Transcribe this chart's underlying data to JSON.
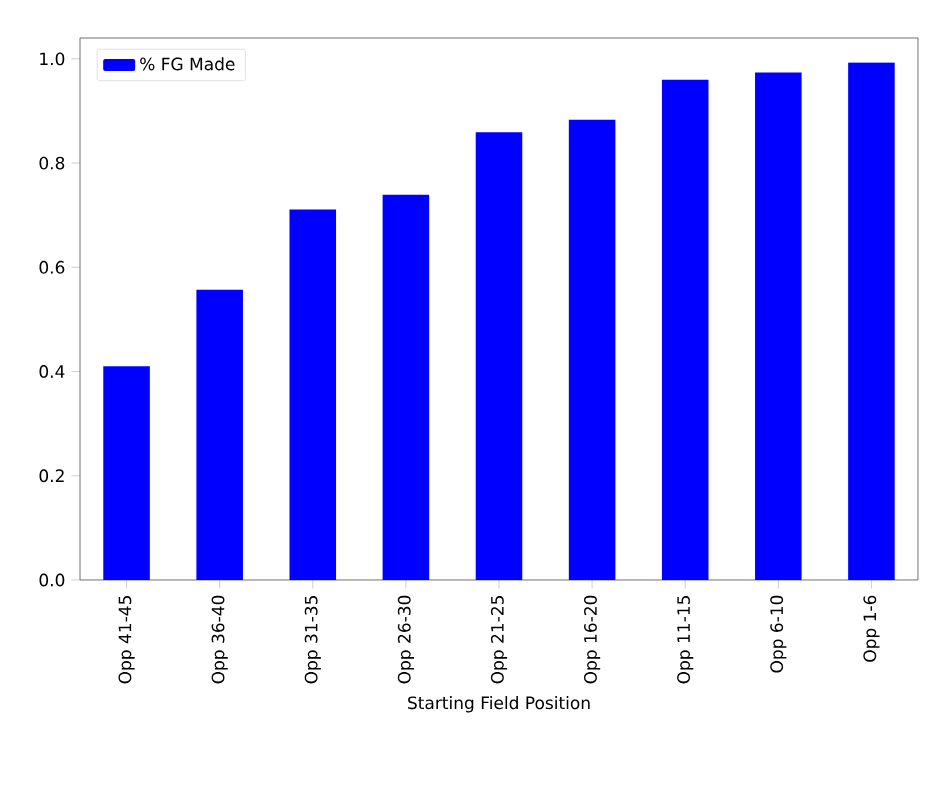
{
  "chart_data": {
    "type": "bar",
    "xlabel": "Starting Field Position",
    "categories": [
      "Opp 41-45",
      "Opp 36-40",
      "Opp 31-35",
      "Opp 26-30",
      "Opp 21-25",
      "Opp 16-20",
      "Opp 11-15",
      "Opp 6-10",
      "Opp 1-6"
    ],
    "series": [
      {
        "name": "% FG Made",
        "color": "#0000ff",
        "values": [
          0.41,
          0.557,
          0.711,
          0.739,
          0.859,
          0.883,
          0.96,
          0.974,
          0.993
        ]
      }
    ],
    "ylim": [
      0,
      1.04
    ],
    "yticks": [
      {
        "value": 0,
        "label": "0.0"
      },
      0.2,
      0.4,
      0.6,
      0.8,
      {
        "value": 1,
        "label": "1.0"
      }
    ],
    "legend": "top left",
    "grid": false
  }
}
